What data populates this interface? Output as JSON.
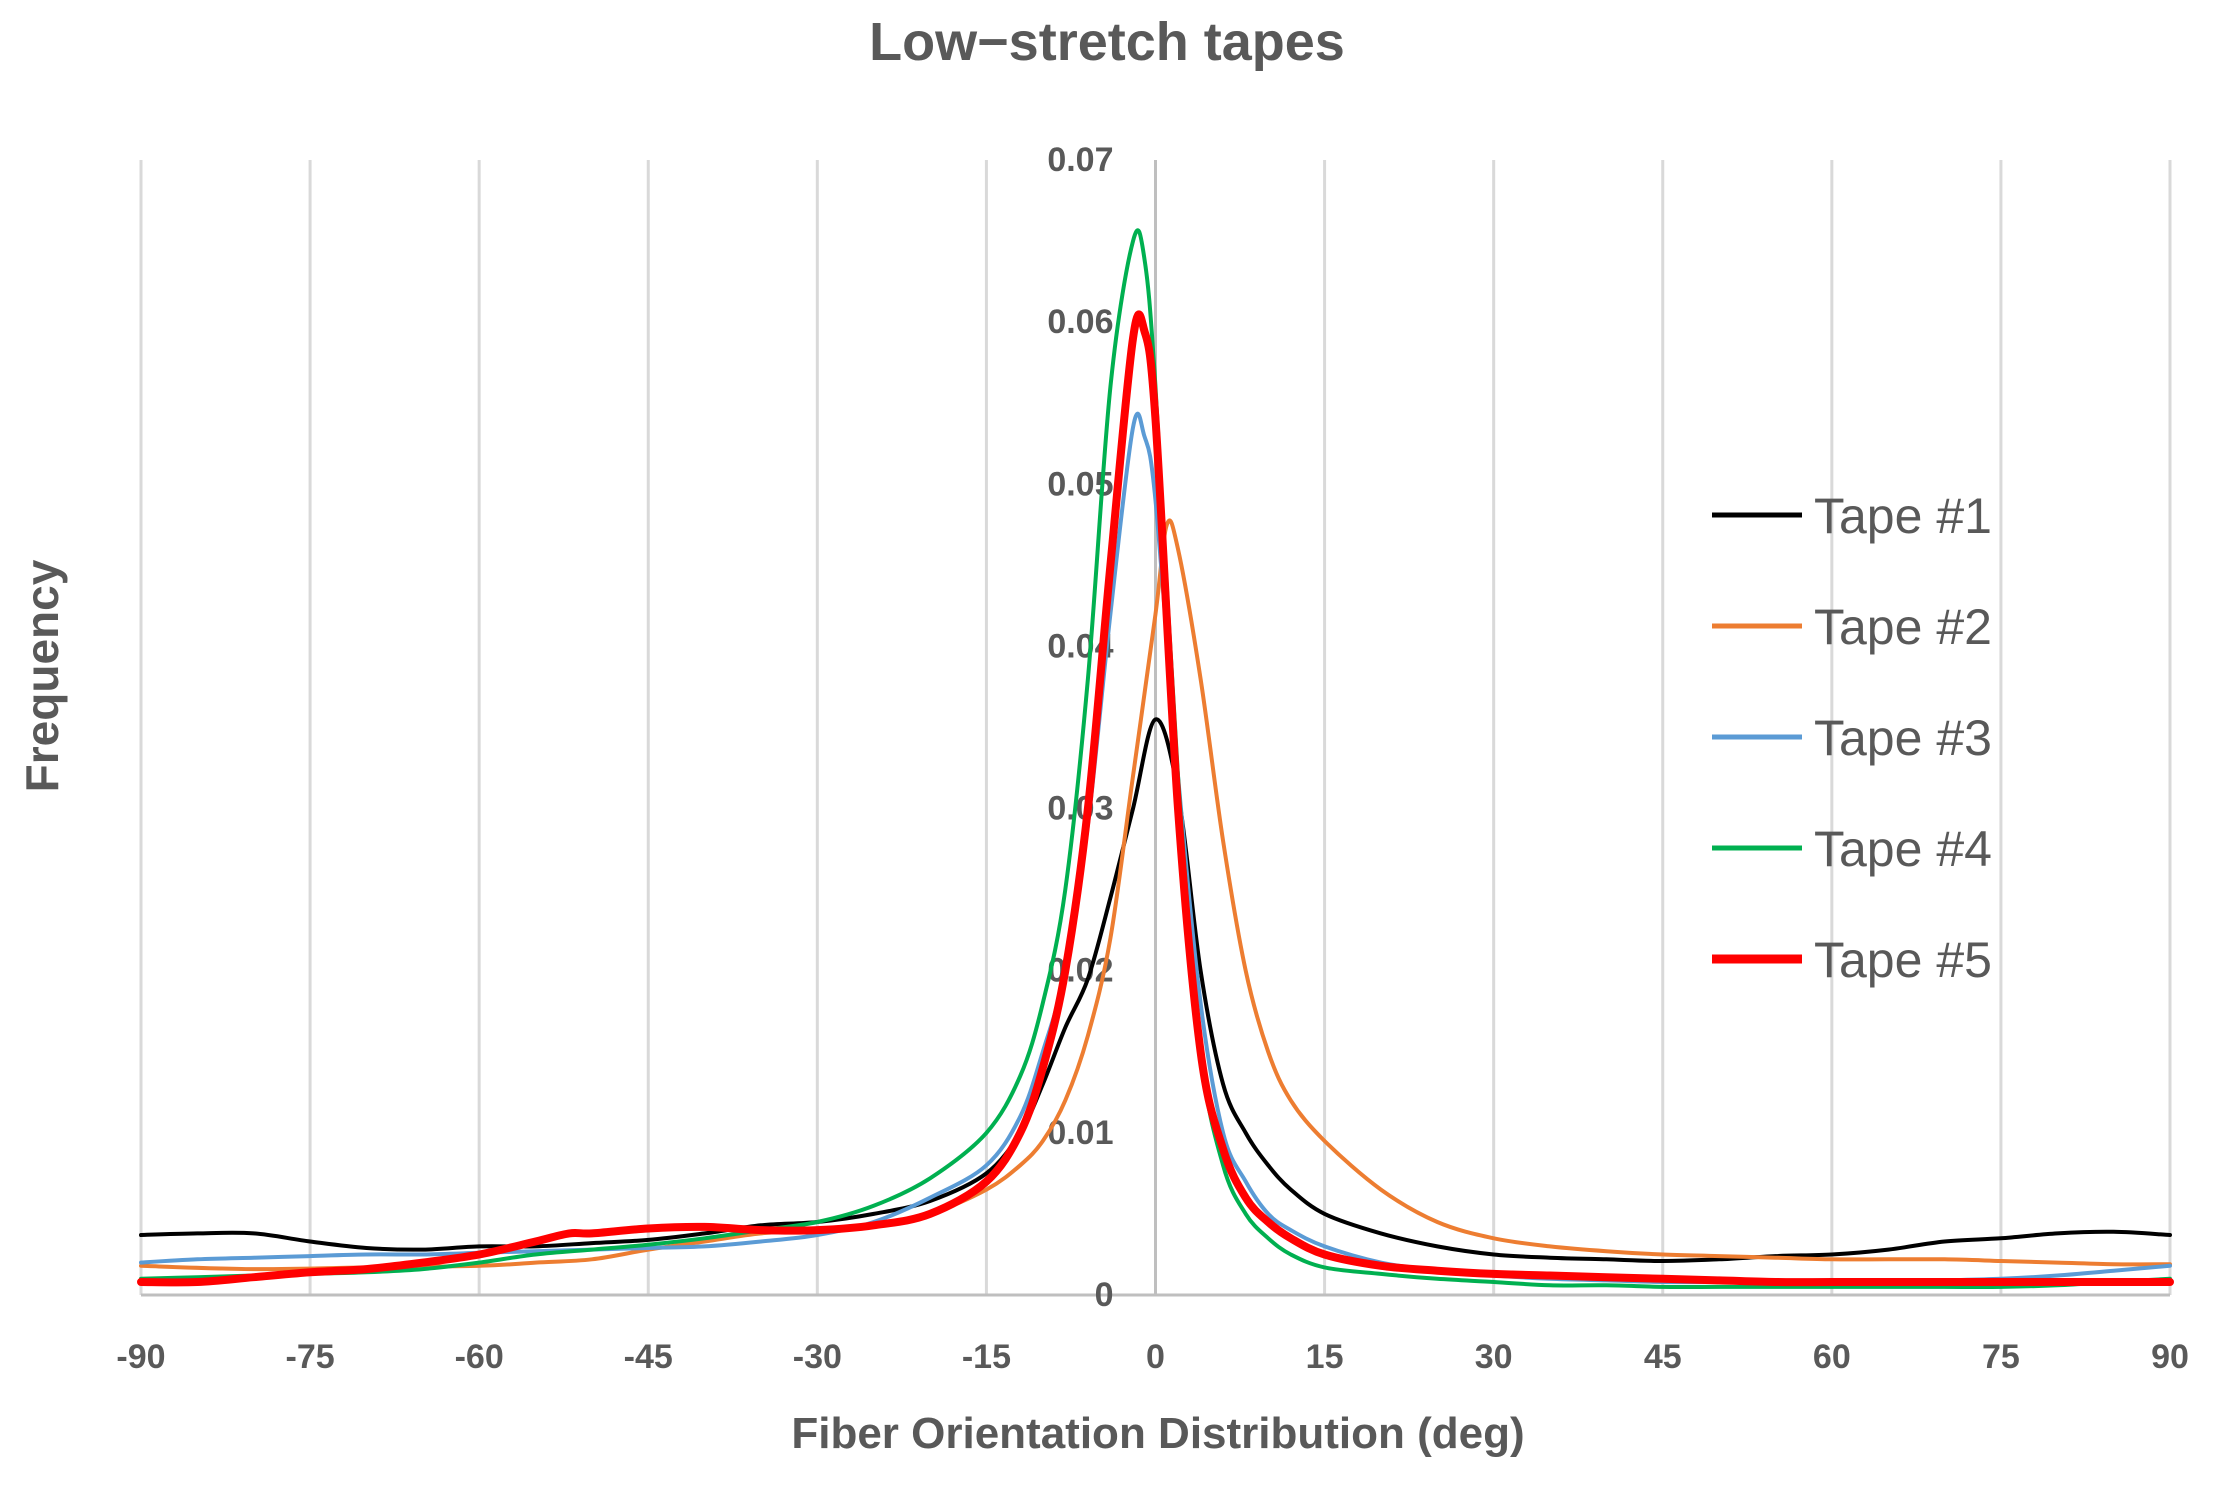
{
  "chart_data": {
    "type": "line",
    "title": "Low−stretch tapes",
    "xlabel": "Fiber Orientation Distribution (deg)",
    "ylabel": "Frequency",
    "xlim": [
      -90,
      90
    ],
    "ylim": [
      0,
      0.07
    ],
    "x_ticks": [
      "-90",
      "-75",
      "-60",
      "-45",
      "-30",
      "-15",
      "0",
      "15",
      "30",
      "45",
      "60",
      "75",
      "90"
    ],
    "y_ticks": [
      "0",
      "0.01",
      "0.02",
      "0.03",
      "0.04",
      "0.05",
      "0.06",
      "0.07"
    ],
    "grid": "vertical",
    "legend_position": "right",
    "series": [
      {
        "name": "Tape #1",
        "color": "#000000",
        "x": [
          -90,
          -85,
          -80,
          -75,
          -70,
          -65,
          -60,
          -55,
          -50,
          -45,
          -40,
          -35,
          -30,
          -25,
          -20,
          -15,
          -12,
          -10,
          -8,
          -6,
          -4,
          -2,
          0,
          2,
          4,
          6,
          8,
          10,
          12,
          15,
          20,
          25,
          30,
          35,
          40,
          45,
          50,
          55,
          60,
          65,
          70,
          75,
          80,
          85,
          90
        ],
        "y": [
          0.0037,
          0.0038,
          0.0038,
          0.0033,
          0.0029,
          0.0028,
          0.003,
          0.003,
          0.0032,
          0.0034,
          0.0038,
          0.0043,
          0.0045,
          0.005,
          0.0058,
          0.0075,
          0.01,
          0.013,
          0.0165,
          0.0195,
          0.0245,
          0.03,
          0.0355,
          0.031,
          0.02,
          0.013,
          0.01,
          0.008,
          0.0065,
          0.005,
          0.0038,
          0.003,
          0.0025,
          0.0023,
          0.0022,
          0.0021,
          0.0022,
          0.0024,
          0.0025,
          0.0028,
          0.0033,
          0.0035,
          0.0038,
          0.0039,
          0.0037
        ]
      },
      {
        "name": "Tape #2",
        "color": "#ED7D31",
        "x": [
          -90,
          -80,
          -70,
          -60,
          -55,
          -50,
          -45,
          -40,
          -35,
          -30,
          -25,
          -20,
          -15,
          -12,
          -10,
          -8,
          -6,
          -4,
          -2,
          0,
          1,
          2,
          4,
          6,
          8,
          10,
          12,
          15,
          20,
          25,
          30,
          35,
          40,
          45,
          50,
          55,
          60,
          65,
          70,
          75,
          80,
          85,
          90
        ],
        "y": [
          0.0018,
          0.0016,
          0.0017,
          0.0018,
          0.002,
          0.0022,
          0.0028,
          0.0033,
          0.0038,
          0.004,
          0.0043,
          0.005,
          0.0065,
          0.008,
          0.0095,
          0.012,
          0.016,
          0.022,
          0.032,
          0.042,
          0.0475,
          0.046,
          0.038,
          0.028,
          0.02,
          0.015,
          0.012,
          0.0095,
          0.0065,
          0.0045,
          0.0035,
          0.003,
          0.0027,
          0.0025,
          0.0024,
          0.0023,
          0.0022,
          0.0022,
          0.0022,
          0.0021,
          0.002,
          0.0019,
          0.0019
        ]
      },
      {
        "name": "Tape #3",
        "color": "#5B9BD5",
        "x": [
          -90,
          -85,
          -80,
          -75,
          -70,
          -65,
          -60,
          -55,
          -50,
          -45,
          -40,
          -35,
          -30,
          -25,
          -20,
          -15,
          -12,
          -10,
          -8,
          -6,
          -4,
          -2,
          -1,
          0,
          2,
          4,
          6,
          8,
          10,
          12,
          15,
          20,
          25,
          30,
          35,
          40,
          45,
          50,
          55,
          60,
          65,
          70,
          75,
          80,
          85,
          90
        ],
        "y": [
          0.002,
          0.0022,
          0.0023,
          0.0024,
          0.0025,
          0.0025,
          0.0026,
          0.0027,
          0.0028,
          0.0029,
          0.003,
          0.0033,
          0.0037,
          0.0045,
          0.006,
          0.008,
          0.011,
          0.015,
          0.02,
          0.029,
          0.042,
          0.0535,
          0.053,
          0.049,
          0.032,
          0.018,
          0.01,
          0.007,
          0.005,
          0.004,
          0.003,
          0.002,
          0.0015,
          0.0012,
          0.001,
          0.0009,
          0.0008,
          0.0008,
          0.0008,
          0.0008,
          0.0008,
          0.0009,
          0.001,
          0.0012,
          0.0015,
          0.0018
        ]
      },
      {
        "name": "Tape #4",
        "color": "#00B050",
        "x": [
          -90,
          -85,
          -80,
          -75,
          -70,
          -65,
          -60,
          -55,
          -50,
          -45,
          -40,
          -35,
          -30,
          -25,
          -20,
          -15,
          -12,
          -10,
          -8,
          -6,
          -4,
          -2,
          -1,
          0,
          2,
          4,
          6,
          8,
          10,
          12,
          15,
          20,
          25,
          30,
          35,
          40,
          45,
          50,
          55,
          60,
          65,
          70,
          75,
          80,
          85,
          90
        ],
        "y": [
          0.001,
          0.0011,
          0.0012,
          0.0013,
          0.0014,
          0.0016,
          0.002,
          0.0025,
          0.0028,
          0.0031,
          0.0035,
          0.004,
          0.0045,
          0.0055,
          0.0072,
          0.01,
          0.0135,
          0.018,
          0.025,
          0.038,
          0.056,
          0.065,
          0.064,
          0.056,
          0.032,
          0.015,
          0.008,
          0.005,
          0.0035,
          0.0025,
          0.0017,
          0.0013,
          0.001,
          0.0008,
          0.0006,
          0.0006,
          0.0005,
          0.0005,
          0.0005,
          0.0005,
          0.0005,
          0.0005,
          0.0005,
          0.0006,
          0.0008,
          0.001
        ]
      },
      {
        "name": "Tape #5",
        "color": "#FF0000",
        "x": [
          -90,
          -85,
          -80,
          -75,
          -70,
          -65,
          -60,
          -55,
          -52,
          -50,
          -45,
          -40,
          -35,
          -30,
          -25,
          -20,
          -15,
          -12,
          -10,
          -8,
          -6,
          -4,
          -2,
          -1,
          0,
          2,
          4,
          6,
          8,
          10,
          12,
          15,
          20,
          25,
          30,
          35,
          40,
          45,
          50,
          55,
          60,
          65,
          70,
          75,
          80,
          85,
          90
        ],
        "y": [
          0.0008,
          0.0008,
          0.0011,
          0.0014,
          0.0016,
          0.002,
          0.0025,
          0.0033,
          0.0038,
          0.0038,
          0.0041,
          0.0042,
          0.004,
          0.004,
          0.0043,
          0.005,
          0.007,
          0.01,
          0.014,
          0.02,
          0.03,
          0.045,
          0.059,
          0.0595,
          0.054,
          0.03,
          0.015,
          0.009,
          0.006,
          0.0045,
          0.0035,
          0.0025,
          0.0018,
          0.0015,
          0.0013,
          0.0012,
          0.0011,
          0.001,
          0.0009,
          0.0008,
          0.0008,
          0.0008,
          0.0008,
          0.0008,
          0.0008,
          0.0008,
          0.0008
        ]
      }
    ]
  }
}
